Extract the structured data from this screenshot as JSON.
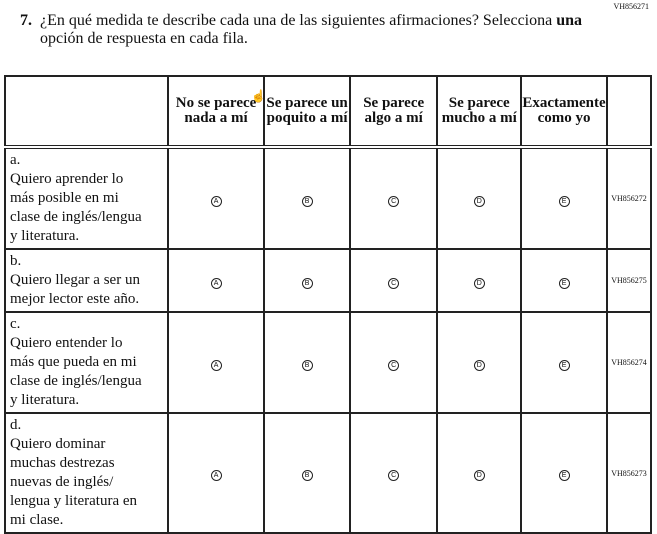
{
  "question": {
    "id": "VH856271",
    "number": "7.",
    "text_before": "¿En qué medida te describe cada una de las siguientes afirmaciones? Selecciona ",
    "text_bold": "una",
    "text_after": " opción de respuesta en cada fila."
  },
  "columns": [
    "No se parece nada a mí",
    "Se parece un poquito a mí",
    "Se parece algo a mí",
    "Se parece mucho a mí",
    "Exactamente como yo"
  ],
  "options": [
    "A",
    "B",
    "C",
    "D",
    "E"
  ],
  "rows": [
    {
      "label": "a.",
      "text": "Quiero aprender lo más posible en mi clase de inglés/lengua y literatura.",
      "code": "VH856272"
    },
    {
      "label": "b.",
      "text": "Quiero llegar a ser un mejor lector este año.",
      "code": "VH856275"
    },
    {
      "label": "c.",
      "text": "Quiero entender lo más que pueda en mi clase de inglés/lengua y literatura.",
      "code": "VH856274"
    },
    {
      "label": "d.",
      "text": "Quiero dominar muchas destrezas nuevas de inglés/ lengua y literatura en mi clase.",
      "code": "VH856273"
    }
  ],
  "cursor_icon": "hand-pointer-icon"
}
